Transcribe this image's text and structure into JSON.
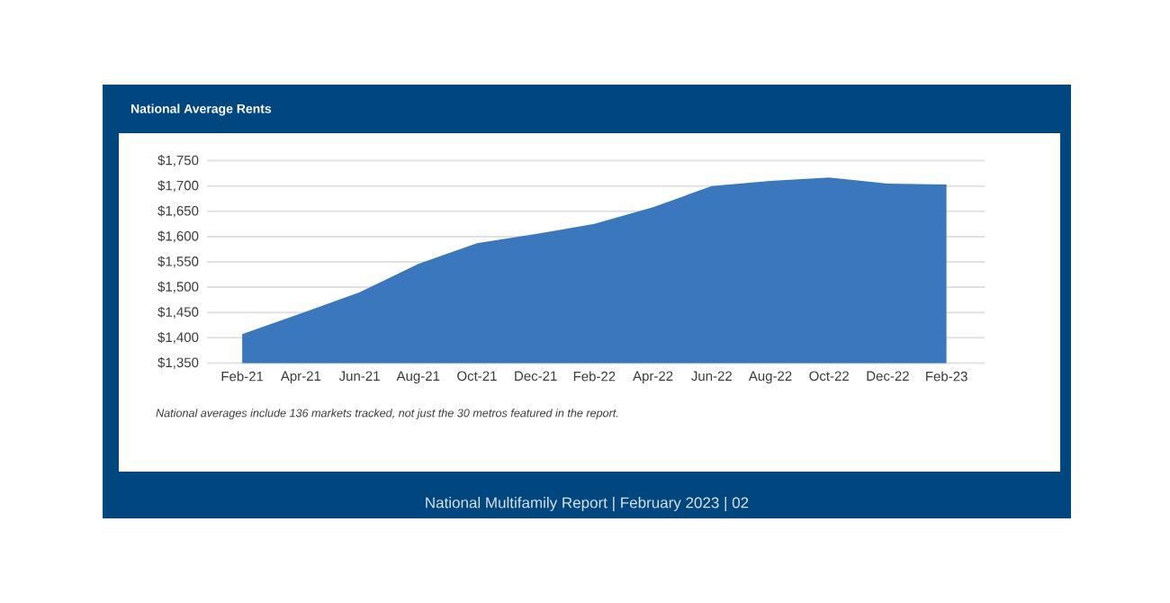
{
  "chart_data": {
    "type": "area",
    "title": "National Average Rents",
    "categories": [
      "Feb-21",
      "Apr-21",
      "Jun-21",
      "Aug-21",
      "Oct-21",
      "Dec-21",
      "Feb-22",
      "Apr-22",
      "Jun-22",
      "Aug-22",
      "Oct-22",
      "Dec-22",
      "Feb-23"
    ],
    "values": [
      1407,
      1448,
      1490,
      1546,
      1587,
      1605,
      1625,
      1658,
      1700,
      1710,
      1717,
      1705,
      1703
    ],
    "color": "#3a77bd",
    "ylim": [
      1350,
      1750
    ],
    "yticks": [
      {
        "value": 1350,
        "label": "$1,350"
      },
      {
        "value": 1400,
        "label": "$1,400"
      },
      {
        "value": 1450,
        "label": "$1,450"
      },
      {
        "value": 1500,
        "label": "$1,500"
      },
      {
        "value": 1550,
        "label": "$1,550"
      },
      {
        "value": 1600,
        "label": "$1,600"
      },
      {
        "value": 1650,
        "label": "$1,650"
      },
      {
        "value": 1700,
        "label": "$1,700"
      },
      {
        "value": 1750,
        "label": "$1,750"
      }
    ],
    "grid": "y",
    "annotations": [
      "National averages include 136 markets tracked, not just the 30 metros featured in the report.",
      "National Multifamily Report  |  February 2023  |  02"
    ]
  }
}
